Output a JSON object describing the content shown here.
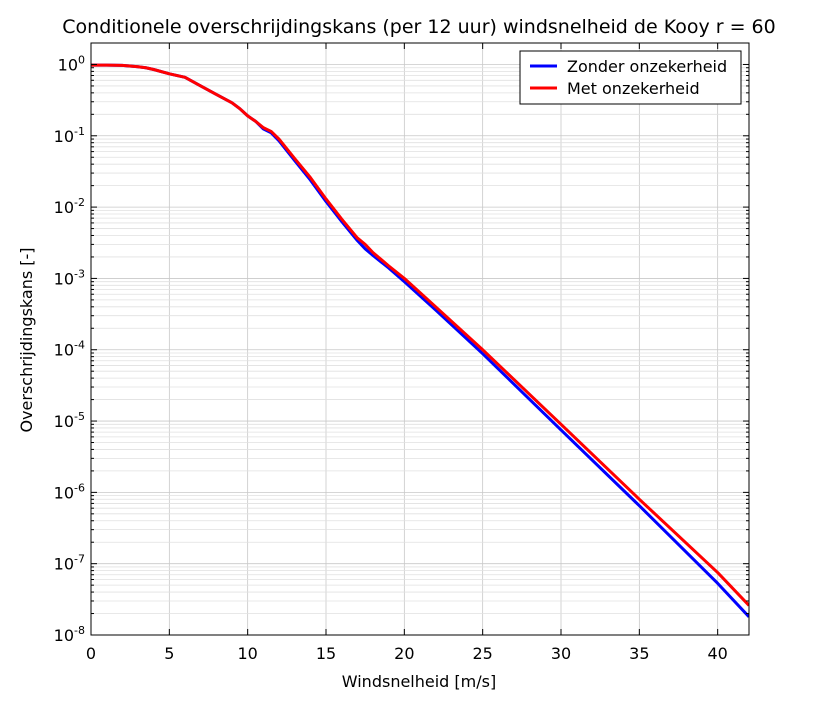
{
  "chart_data": {
    "type": "line",
    "title": "Conditionele overschrijdingskans (per 12 uur) windsnelheid de Kooy r = 60",
    "xlabel": "Windsnelheid [m/s]",
    "ylabel": "Overschrijdingskans [-]",
    "xlim": [
      0,
      42
    ],
    "ylim": [
      1e-08,
      2
    ],
    "yscale": "log",
    "grid": true,
    "legend_position": "top-right",
    "x_ticks": [
      0,
      5,
      10,
      15,
      20,
      25,
      30,
      35,
      40
    ],
    "x_tick_labels": [
      "0",
      "5",
      "10",
      "15",
      "20",
      "25",
      "30",
      "35",
      "40"
    ],
    "y_ticks": [
      1,
      0.1,
      0.01,
      0.001,
      0.0001,
      1e-05,
      1e-06,
      1e-07,
      1e-08
    ],
    "y_tick_labels": [
      {
        "base": "10",
        "exp": "0"
      },
      {
        "base": "10",
        "exp": "-1"
      },
      {
        "base": "10",
        "exp": "-2"
      },
      {
        "base": "10",
        "exp": "-3"
      },
      {
        "base": "10",
        "exp": "-4"
      },
      {
        "base": "10",
        "exp": "-5"
      },
      {
        "base": "10",
        "exp": "-6"
      },
      {
        "base": "10",
        "exp": "-7"
      },
      {
        "base": "10",
        "exp": "-8"
      }
    ],
    "series": [
      {
        "name": "Zonder onzekerheid",
        "color": "#0000ff",
        "x": [
          0,
          1,
          2,
          3,
          3.5,
          4,
          5,
          6,
          7,
          8,
          9,
          9.5,
          10,
          10.5,
          11,
          11.5,
          12,
          13,
          14,
          15,
          16,
          17,
          17.5,
          18,
          19,
          20,
          22,
          25,
          30,
          35,
          40,
          42
        ],
        "y": [
          0.98,
          0.98,
          0.97,
          0.93,
          0.9,
          0.85,
          0.74,
          0.66,
          0.5,
          0.38,
          0.29,
          0.24,
          0.19,
          0.16,
          0.125,
          0.11,
          0.085,
          0.045,
          0.024,
          0.012,
          0.0063,
          0.0034,
          0.0026,
          0.0021,
          0.0014,
          0.0009,
          0.00036,
          8.8e-05,
          7.5e-06,
          6.5e-07,
          5.3e-08,
          1.8e-08
        ]
      },
      {
        "name": "Met onzekerheid",
        "color": "#ff0000",
        "x": [
          0,
          1,
          2,
          3,
          3.5,
          4,
          5,
          6,
          7,
          8,
          9,
          9.5,
          10,
          10.5,
          11,
          11.5,
          12,
          13,
          14,
          15,
          16,
          17,
          17.5,
          18,
          19,
          20,
          22,
          25,
          30,
          35,
          40,
          42
        ],
        "y": [
          0.98,
          0.98,
          0.97,
          0.93,
          0.9,
          0.85,
          0.74,
          0.66,
          0.5,
          0.38,
          0.29,
          0.24,
          0.19,
          0.16,
          0.13,
          0.115,
          0.09,
          0.048,
          0.026,
          0.013,
          0.0068,
          0.0037,
          0.003,
          0.0023,
          0.0015,
          0.001,
          0.0004,
          0.0001,
          9e-06,
          8e-07,
          7.5e-08,
          2.6e-08
        ]
      }
    ]
  }
}
